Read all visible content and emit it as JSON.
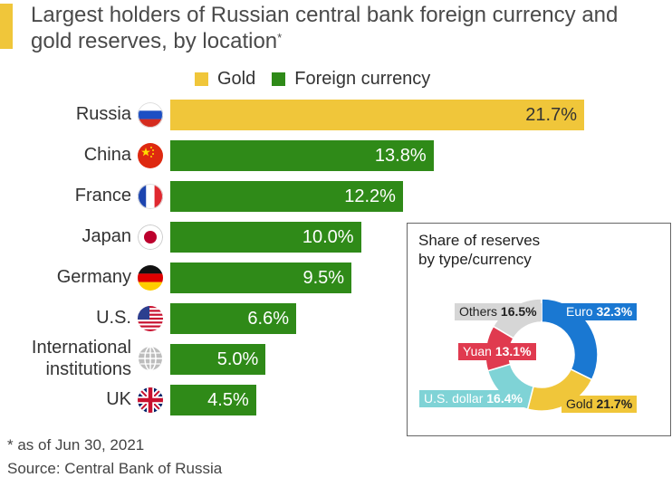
{
  "title": "Largest holders of Russian central bank foreign currency and gold reserves, by location",
  "title_marker": "*",
  "legend": [
    {
      "name": "Gold",
      "color": "#f0c63a"
    },
    {
      "name": "Foreign currency",
      "color": "#2f8a18"
    }
  ],
  "chart_data": [
    {
      "type": "bar",
      "orientation": "horizontal",
      "title": "Largest holders of Russian central bank foreign currency and gold reserves, by location",
      "categories": [
        "Russia",
        "China",
        "France",
        "Japan",
        "Germany",
        "U.S.",
        "International institutions",
        "UK"
      ],
      "values": [
        21.7,
        13.8,
        12.2,
        10.0,
        9.5,
        6.6,
        5.0,
        4.5
      ],
      "value_labels": [
        "21.7%",
        "13.8%",
        "12.2%",
        "10.0%",
        "9.5%",
        "6.6%",
        "5.0%",
        "4.5%"
      ],
      "series_type": [
        "Gold",
        "Foreign currency",
        "Foreign currency",
        "Foreign currency",
        "Foreign currency",
        "Foreign currency",
        "Foreign currency",
        "Foreign currency"
      ],
      "unit": "%",
      "xlim": [
        0,
        21.7
      ],
      "grid": false,
      "legend_position": "top"
    },
    {
      "type": "pie",
      "style": "donut",
      "title": "Share of reserves by type/currency",
      "slices": [
        {
          "label": "Euro",
          "value": 32.3,
          "text": "32.3%",
          "color": "#1a78d2"
        },
        {
          "label": "Gold",
          "value": 21.7,
          "text": "21.7%",
          "color": "#f0c63a"
        },
        {
          "label": "U.S. dollar",
          "value": 16.4,
          "text": "16.4%",
          "color": "#7fd3d6"
        },
        {
          "label": "Yuan",
          "value": 13.1,
          "text": "13.1%",
          "color": "#e03a4f"
        },
        {
          "label": "Others",
          "value": 16.5,
          "text": "16.5%",
          "color": "#d6d6d6"
        }
      ]
    }
  ],
  "rows": [
    {
      "label": "Russia",
      "value": "21.7%",
      "flag": "russia-flag"
    },
    {
      "label": "China",
      "value": "13.8%",
      "flag": "china-flag"
    },
    {
      "label": "France",
      "value": "12.2%",
      "flag": "france-flag"
    },
    {
      "label": "Japan",
      "value": "10.0%",
      "flag": "japan-flag"
    },
    {
      "label": "Germany",
      "value": "9.5%",
      "flag": "germany-flag"
    },
    {
      "label": "U.S.",
      "value": "6.6%",
      "flag": "us-flag"
    },
    {
      "label_line1": "International",
      "label_line2": "institutions",
      "value": "5.0%",
      "flag": "globe-icon"
    },
    {
      "label": "UK",
      "value": "4.5%",
      "flag": "uk-flag"
    }
  ],
  "panel": {
    "title_line1": "Share of reserves",
    "title_line2": "by type/currency"
  },
  "footnote": "* as of Jun 30, 2021",
  "source": "Source: Central Bank of Russia"
}
